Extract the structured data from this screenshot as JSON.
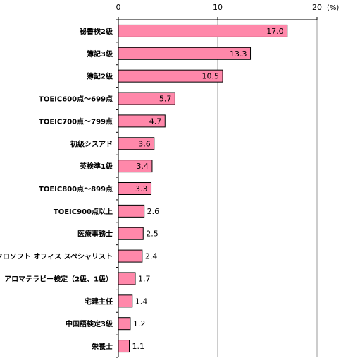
{
  "chart_data": {
    "type": "bar",
    "orientation": "horizontal",
    "categories": [
      "秘書検2級",
      "簿記3級",
      "簿記2級",
      "TOEIC600点～699点",
      "TOEIC700点～799点",
      "初級シスアド",
      "英検準1級",
      "TOEIC800点～899点",
      "TOEIC900点以上",
      "医療事務士",
      "マイクロソフト オフィス スペシャリスト",
      "アロマテラピー検定（2級、1級）",
      "宅建主任",
      "中国語検定3級",
      "栄養士"
    ],
    "values": [
      17.0,
      13.3,
      10.5,
      5.7,
      4.7,
      3.6,
      3.4,
      3.3,
      2.6,
      2.5,
      2.4,
      1.7,
      1.4,
      1.2,
      1.1
    ],
    "value_labels": [
      "17.0",
      "13.3",
      "10.5",
      "5.7",
      "4.7",
      "3.6",
      "3.4",
      "3.3",
      "2.6",
      "2.5",
      "2.4",
      "1.7",
      "1.4",
      "1.2",
      "1.1"
    ],
    "xlim": [
      0,
      20
    ],
    "x_ticks": [
      "0",
      "10",
      "20"
    ],
    "unit": "(%)",
    "grid": true,
    "bar_color": "#ff88aa",
    "bar_border": "#000000"
  }
}
